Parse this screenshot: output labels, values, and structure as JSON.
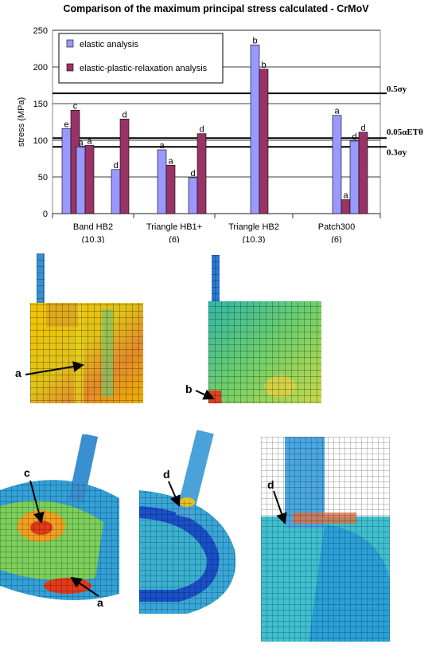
{
  "chart_data": {
    "type": "bar",
    "title": "Comparison of the maximum principal stress calculated - CrMoV",
    "ylabel": "stress (MPa)",
    "xlabel": "",
    "ylim": [
      0,
      250
    ],
    "yticks": [
      "0",
      "50",
      "100",
      "150",
      "200",
      "250"
    ],
    "grid": true,
    "legend_position": "top-left",
    "series": [
      {
        "name": "elastic analysis",
        "color": "#9999ff"
      },
      {
        "name": "elastic-plastic-relaxation analysis",
        "color": "#993366"
      }
    ],
    "groups": [
      {
        "name": "Band HB2",
        "sub": "(10.3)",
        "pairs": [
          {
            "elastic": 116,
            "elastic_label": "e",
            "epr": 141,
            "epr_label": "c"
          },
          {
            "elastic": 91,
            "elastic_label": "a",
            "epr": 93,
            "epr_label": "a"
          },
          {
            "elastic": 60,
            "elastic_label": "d",
            "epr": 129,
            "epr_label": "d"
          }
        ]
      },
      {
        "name": "Triangle HB1+",
        "sub": "(6)",
        "pairs": [
          {
            "elastic": 87,
            "elastic_label": "a",
            "epr": 66,
            "epr_label": "a"
          },
          {
            "elastic": 49,
            "elastic_label": "d",
            "epr": 109,
            "epr_label": "d"
          }
        ]
      },
      {
        "name": "Triangle HB2",
        "sub": "(10.3)",
        "pairs": [
          {
            "elastic": 230,
            "elastic_label": "b",
            "epr": 197,
            "epr_label": "b"
          }
        ]
      },
      {
        "name": "Patch300",
        "sub": "(6)",
        "pairs": [
          {
            "elastic": 134,
            "elastic_label": "a",
            "epr": 19,
            "epr_label": "a"
          },
          {
            "elastic": 99,
            "elastic_label": "d",
            "epr": 111,
            "epr_label": "d"
          }
        ]
      }
    ],
    "reference_lines": [
      {
        "label": "0.5σy",
        "value": 164
      },
      {
        "label": "0.05αETθ",
        "value": 103
      },
      {
        "label": "0.3σy",
        "value": 91
      }
    ]
  },
  "figures": {
    "section_views": {
      "left_callout": "a",
      "right_callout": "b"
    },
    "three_d_views": {
      "left_callouts": [
        "c",
        "a"
      ],
      "middle_callout": "d",
      "right_callout": "d"
    }
  }
}
